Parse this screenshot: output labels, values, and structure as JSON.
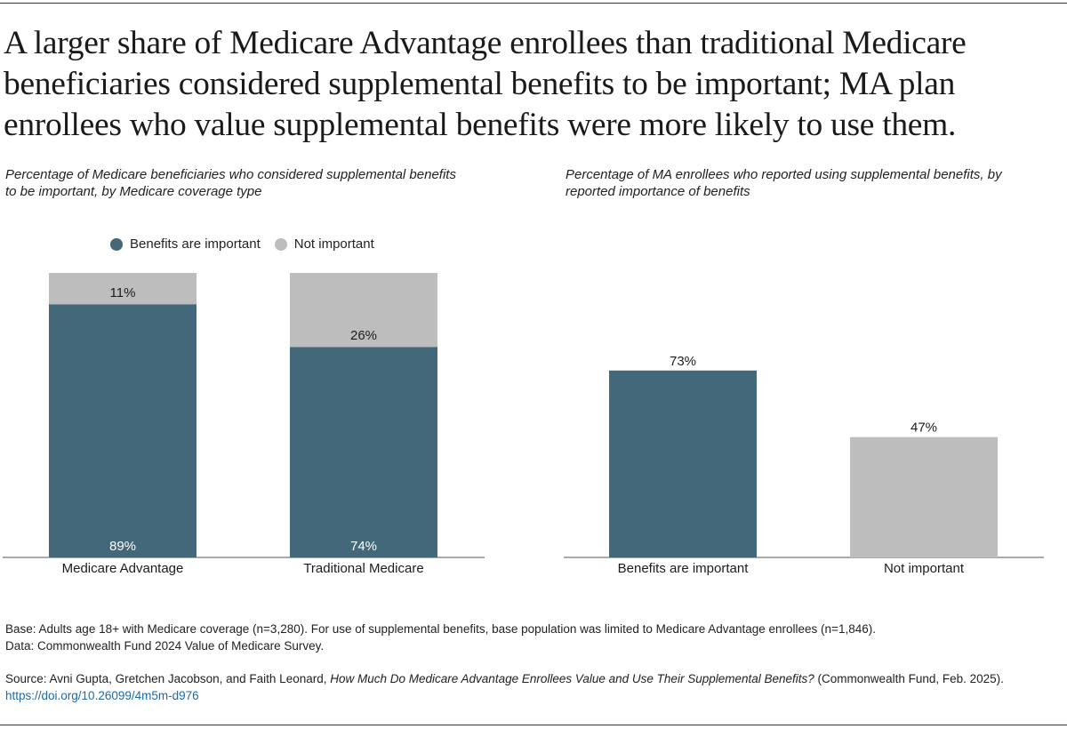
{
  "title": "A larger share of Medicare Advantage enrollees than traditional Medicare beneficiaries considered supplemental benefits to be important; MA plan enrollees who value supplemental benefits were more likely to use them.",
  "colors": {
    "important": "#436879",
    "not_important": "#bdbdbd",
    "axis": "#555555"
  },
  "left_chart": {
    "subtitle": "Percentage of Medicare beneficiaries who considered supplemental benefits to be important, by Medicare coverage type",
    "legend": [
      {
        "label": "Benefits are important",
        "color": "#436879"
      },
      {
        "label": "Not important",
        "color": "#bdbdbd"
      }
    ]
  },
  "right_chart": {
    "subtitle": "Percentage of MA enrollees who reported using supplemental benefits, by reported importance of benefits"
  },
  "chart_data": [
    {
      "type": "bar",
      "stacked": true,
      "title": "Percentage of Medicare beneficiaries who considered supplemental benefits to be important, by Medicare coverage type",
      "categories": [
        "Medicare Advantage",
        "Traditional Medicare"
      ],
      "series": [
        {
          "name": "Benefits are important",
          "values": [
            89,
            74
          ],
          "labels": [
            "89%",
            "74%"
          ]
        },
        {
          "name": "Not important",
          "values": [
            11,
            26
          ],
          "labels": [
            "11%",
            "26%"
          ]
        }
      ],
      "ylim": [
        0,
        100
      ],
      "legend_position": "top"
    },
    {
      "type": "bar",
      "title": "Percentage of MA enrollees who reported using supplemental benefits, by reported importance of benefits",
      "categories": [
        "Benefits are important",
        "Not important"
      ],
      "values": [
        73,
        47
      ],
      "labels": [
        "73%",
        "47%"
      ],
      "ylim": [
        0,
        100
      ]
    }
  ],
  "footnotes": {
    "base": "Base: Adults age 18+ with Medicare coverage (n=3,280). For use of supplemental benefits, base population was limited to Medicare Advantage enrollees (n=1,846).",
    "data": "Data: Commonwealth Fund 2024 Value of Medicare Survey.",
    "source_prefix": "Source: Avni Gupta, Gretchen Jacobson, and Faith Leonard, ",
    "source_title": "How Much Do Medicare Advantage Enrollees Value and Use Their Supplemental Benefits?",
    "source_suffix": " (Commonwealth Fund, Feb. 2025).",
    "doi": "https://doi.org/10.26099/4m5m-d976"
  }
}
